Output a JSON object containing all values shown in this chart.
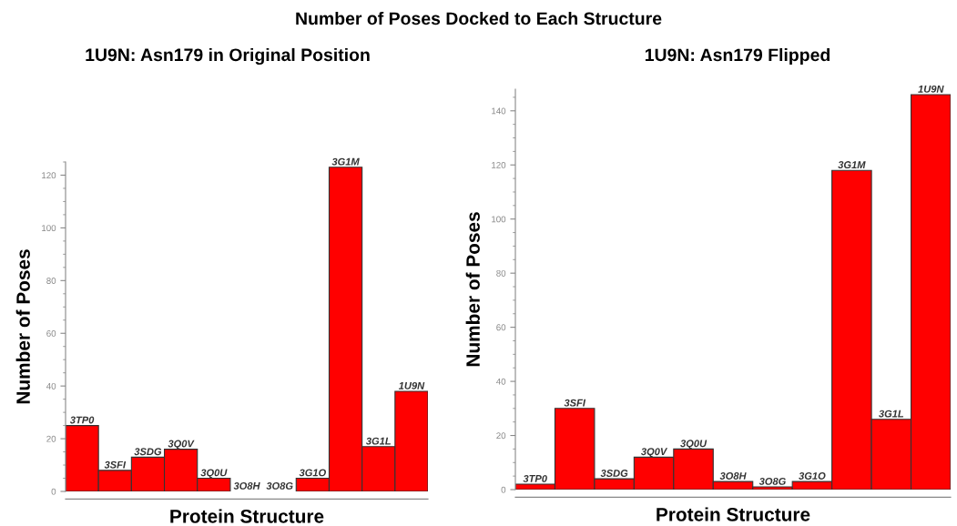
{
  "chart_data": [
    {
      "type": "bar",
      "title": "1U9N: Asn179 in Original Position",
      "xlabel": "Protein Structure",
      "ylabel": "Number of Poses",
      "annotations": [
        "Number of Poses Docked to Each Structure"
      ],
      "categories": [
        "3TP0",
        "3SFI",
        "3SDG",
        "3Q0V",
        "3Q0U",
        "3O8H",
        "3O8G",
        "3G1O",
        "3G1M",
        "3G1L",
        "1U9N"
      ],
      "values": [
        25,
        8,
        13,
        16,
        5,
        0,
        0,
        5,
        123,
        17,
        38
      ],
      "color": "#ff0000",
      "ylim": [
        0,
        125
      ],
      "yticks": [
        0,
        20,
        40,
        60,
        80,
        100,
        120
      ],
      "tick_labels": "y"
    },
    {
      "type": "bar",
      "title": "1U9N: Asn179 Flipped",
      "xlabel": "Protein Structure",
      "ylabel": "Number of Poses",
      "categories": [
        "3TP0",
        "3SFI",
        "3SDG",
        "3Q0V",
        "3Q0U",
        "3O8H",
        "3O8G",
        "3G1O",
        "3G1M",
        "3G1L",
        "1U9N"
      ],
      "values": [
        2,
        30,
        4,
        12,
        15,
        3,
        1,
        3,
        118,
        26,
        146
      ],
      "color": "#ff0000",
      "ylim": [
        0,
        148
      ],
      "yticks": [
        0,
        20,
        40,
        60,
        80,
        100,
        120,
        140
      ],
      "tick_labels": "y"
    }
  ]
}
